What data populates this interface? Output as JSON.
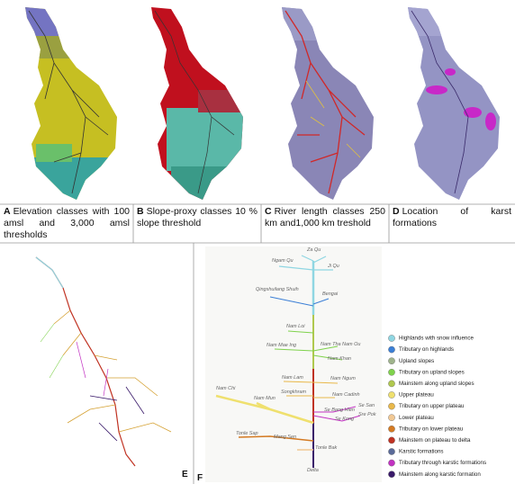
{
  "panels": [
    {
      "letter": "A",
      "caption": "Elevation classes with 100 amsl and 3,000 amsl thresholds"
    },
    {
      "letter": "B",
      "caption": "Slope-proxy classes 10 % slope threshold"
    },
    {
      "letter": "C",
      "caption": "River length classes 250 km and1,000 km treshold"
    },
    {
      "letter": "D",
      "caption": "Location of karst formations"
    },
    {
      "letter": "E"
    },
    {
      "letter": "F"
    }
  ],
  "river_labels": [
    "Za Qu",
    "Ngam Qu",
    "Ji Qu",
    "Qingshuilang Shuih",
    "Bengai",
    "Nam Loi",
    "Nam Mae Ing",
    "Nam Tha",
    "Nam Ou",
    "Nam Khan",
    "Nam Lam",
    "Nam Ngum",
    "Songkhram",
    "Nam Cadinh",
    "Nam Chi",
    "Nam Mun",
    "Se San",
    "Se Bang Hien",
    "Sre Pok",
    "Se Kong",
    "Tonle Sap",
    "Mang Sen",
    "Tonle Bak",
    "Delta"
  ],
  "legend": [
    {
      "name": "Highlands with snow influence",
      "color": "#8fd6e2"
    },
    {
      "name": "Tributary on highlands",
      "color": "#3b7fd6"
    },
    {
      "name": "Upland slopes",
      "color": "#9fb48c"
    },
    {
      "name": "Tributary on upland slopes",
      "color": "#7fd24c"
    },
    {
      "name": "Mainstem along upland slopes",
      "color": "#b0c84e"
    },
    {
      "name": "Upper plateau",
      "color": "#efe06e"
    },
    {
      "name": "Tributary on upper plateau",
      "color": "#e9b84a"
    },
    {
      "name": "Lower plateau",
      "color": "#f1c894"
    },
    {
      "name": "Tributary on lower plateau",
      "color": "#d47a22"
    },
    {
      "name": "Mainstem on plateau to delta",
      "color": "#c03222"
    },
    {
      "name": "Karstic formations",
      "color": "#5a6a98"
    },
    {
      "name": "Tributary through karstic formations",
      "color": "#c232c2"
    },
    {
      "name": "Mainstem along karstic formation",
      "color": "#3a1a6a"
    }
  ]
}
